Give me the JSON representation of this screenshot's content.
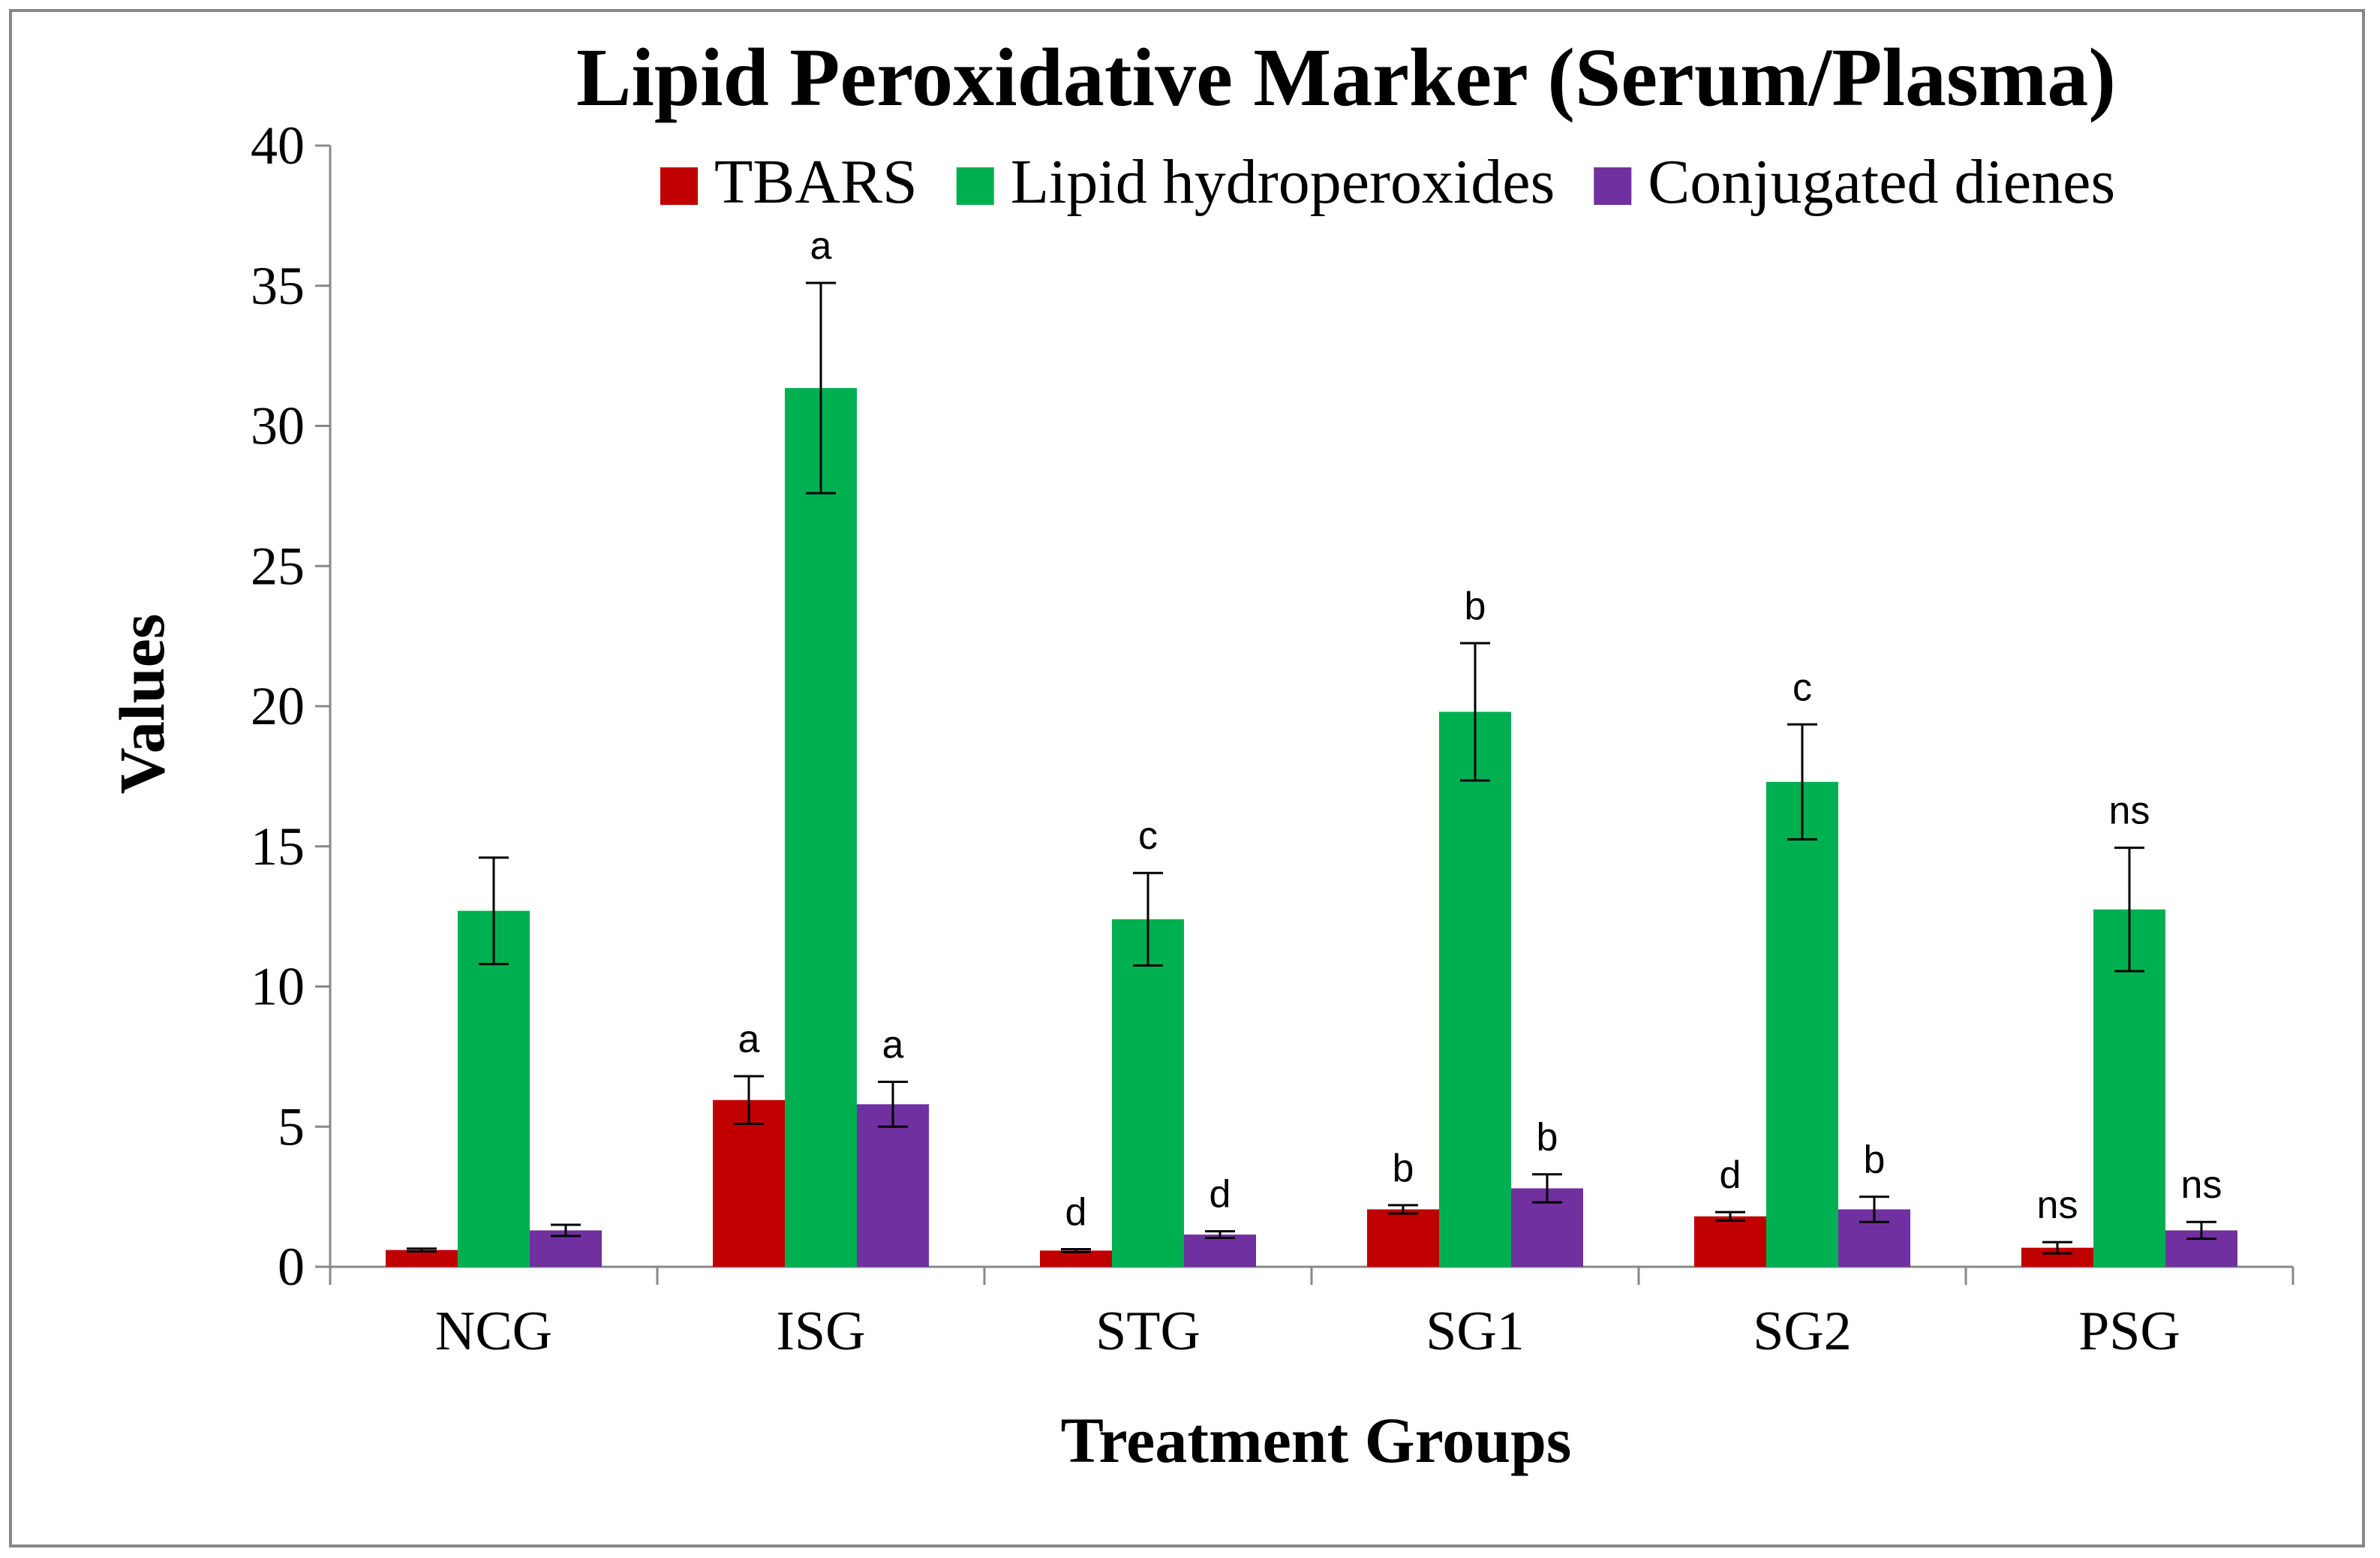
{
  "chart_data": {
    "type": "bar",
    "title": "Lipid Peroxidative Marker (Serum/Plasma)",
    "xlabel": "Treatment Groups",
    "ylabel": "Values",
    "ylim": [
      0,
      40
    ],
    "yticks": [
      0,
      5,
      10,
      15,
      20,
      25,
      30,
      35,
      40
    ],
    "ytick_labels": [
      "0",
      "5",
      "10",
      "15",
      "20",
      "25",
      "30",
      "35",
      "40"
    ],
    "categories": [
      "NCG",
      "ISG",
      "STG",
      "SG1",
      "SG2",
      "PSG"
    ],
    "legend_position": "top-right",
    "grid": false,
    "series": [
      {
        "name": "TBARS",
        "color": "#C00000",
        "values": [
          0.6,
          5.95,
          0.58,
          2.05,
          1.8,
          0.68
        ],
        "errors": [
          0.05,
          0.85,
          0.05,
          0.15,
          0.15,
          0.2
        ],
        "letters": [
          "",
          "a",
          "d",
          "b",
          "d",
          "ns"
        ]
      },
      {
        "name": "Lipid hydroperoxides",
        "color": "#00B050",
        "values": [
          12.7,
          31.35,
          12.4,
          19.8,
          17.3,
          12.75
        ],
        "errors": [
          1.9,
          3.75,
          1.65,
          2.45,
          2.05,
          2.2
        ],
        "letters": [
          "",
          "a",
          "c",
          "b",
          "c",
          "ns"
        ]
      },
      {
        "name": "Conjugated dienes",
        "color": "#7030A0",
        "values": [
          1.3,
          5.8,
          1.15,
          2.8,
          2.05,
          1.3
        ],
        "errors": [
          0.2,
          0.8,
          0.12,
          0.5,
          0.45,
          0.3
        ],
        "letters": [
          "",
          "a",
          "d",
          "b",
          "b",
          "ns"
        ]
      }
    ]
  }
}
